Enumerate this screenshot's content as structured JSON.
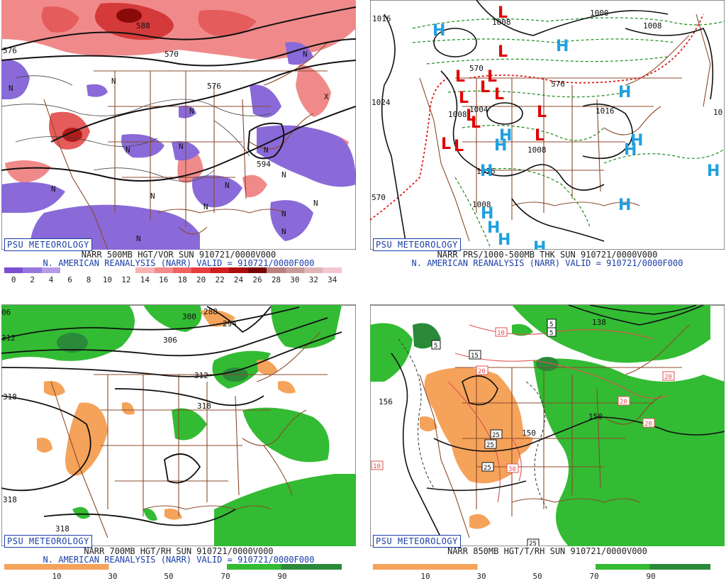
{
  "badge": "PSU METEOROLOGY",
  "panels": {
    "tl": {
      "title": "NARR 500MB HGT/VOR SUN 910721/0000V000",
      "subtitle": "N. AMERICAN REANALYSIS (NARR) VALID = 910721/0000F000",
      "legend": [
        "0",
        "2",
        "4",
        "6",
        "8",
        "10",
        "12",
        "14",
        "16",
        "18",
        "20",
        "22",
        "24",
        "26",
        "28",
        "30",
        "32",
        "34"
      ],
      "legend_colors": [
        "#7a4fd0",
        "#9677de",
        "#b59ce9",
        "#ffffff",
        "#ffffff",
        "#ffffff",
        "#ffffff",
        "#f7b2b2",
        "#f28a8a",
        "#ee6262",
        "#e53d3d",
        "#d01e1e",
        "#aa0e0e",
        "#7a0000",
        "#b98080",
        "#c89a9a",
        "#deb6b6",
        "#f2c8cf"
      ],
      "labels": [
        "588",
        "570",
        "576",
        "576",
        "594",
        "N",
        "N",
        "N",
        "N",
        "N",
        "N",
        "N",
        "N",
        "N",
        "N",
        "N",
        "N",
        "N",
        "N",
        "N",
        "N",
        "X"
      ]
    },
    "tr": {
      "title": "NARR PRS/1000-500MB THK SUN 910721/0000V000",
      "subtitle": "N. AMERICAN REANALYSIS (NARR) VALID = 910721/0000F000",
      "labels": [
        "1016",
        "1000",
        "1008",
        "1008",
        "1024",
        "1008",
        "1016",
        "1004",
        "1008",
        "1008",
        "1016",
        "10",
        "570",
        "576",
        "570"
      ],
      "highs": [
        "H",
        "H",
        "H",
        "H",
        "H",
        "H",
        "H",
        "H",
        "H",
        "H",
        "H",
        "H",
        "H",
        "H"
      ],
      "lows": [
        "L",
        "L",
        "L",
        "L",
        "L",
        "L",
        "L",
        "L",
        "L",
        "L",
        "L",
        "L",
        "L"
      ]
    },
    "bl": {
      "title": "NARR 700MB HGT/RH SUN 910721/0000V000",
      "subtitle": "N. AMERICAN REANALYSIS (NARR) VALID = 910721/0000F000",
      "legend": [
        "10",
        "30",
        "50",
        "70",
        "90"
      ],
      "labels": [
        "312",
        "318",
        "300",
        "288",
        "294",
        "306",
        "312",
        "318",
        "318",
        "318",
        "06"
      ]
    },
    "br": {
      "title": "NARR 850MB HGT/T/RH SUN 910721/0000V000",
      "legend": [
        "10",
        "30",
        "50",
        "70",
        "90"
      ],
      "labels": [
        "156",
        "150",
        "150",
        "138",
        "10"
      ],
      "boxed": [
        "5",
        "5",
        "5",
        "15",
        "20",
        "20",
        "20",
        "20",
        "25",
        "25",
        "25",
        "30",
        "10",
        "10",
        "25"
      ]
    }
  },
  "colors": {
    "state_lines": "#8b4a2b",
    "contour": "#111111",
    "vort_pos": "#ee5a5a",
    "vort_neg": "#8a6ad8",
    "rh_moist": "#33bb33",
    "rh_dry": "#f5a35a",
    "low": "#e00000",
    "high": "#20a0e0",
    "caption_blue": "#1a3ea8"
  }
}
